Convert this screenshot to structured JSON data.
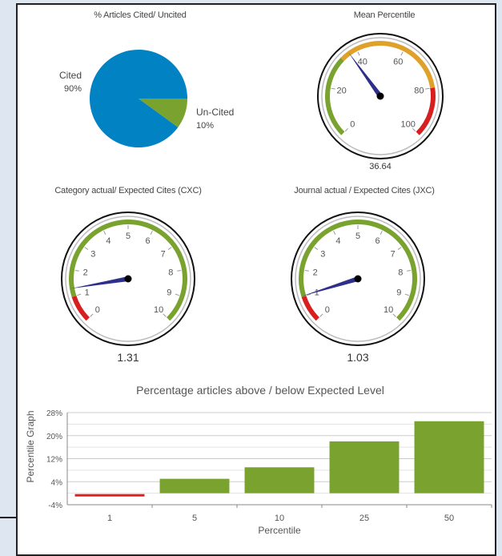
{
  "chart_data": [
    {
      "type": "pie",
      "title": "% Articles Cited/ Uncited",
      "slices": [
        {
          "label": "Cited",
          "pct_label": "90%",
          "value": 90,
          "color": "#0082c3"
        },
        {
          "label": "Un-Cited",
          "pct_label": "10%",
          "value": 10,
          "color": "#7aa22f"
        }
      ]
    },
    {
      "type": "gauge",
      "title": "Mean Percentile",
      "value": 36.64,
      "value_label": "36.64",
      "min": 0,
      "max": 100,
      "ticks": [
        "0",
        "20",
        "40",
        "60",
        "80",
        "100"
      ],
      "bands": [
        {
          "from": 0,
          "to": 33,
          "color": "#7aa22f"
        },
        {
          "from": 33,
          "to": 80,
          "color": "#e0a12b"
        },
        {
          "from": 80,
          "to": 100,
          "color": "#d81f1f"
        }
      ]
    },
    {
      "type": "gauge",
      "title": "Category actual/ Expected Cites (CXC)",
      "value": 1.31,
      "value_label": "1.31",
      "min": 0,
      "max": 10,
      "ticks": [
        "0",
        "1",
        "2",
        "3",
        "4",
        "5",
        "6",
        "7",
        "8",
        "9",
        "10"
      ],
      "bands": [
        {
          "from": 0,
          "to": 1,
          "color": "#d81f1f"
        },
        {
          "from": 1,
          "to": 10,
          "color": "#7aa22f"
        }
      ]
    },
    {
      "type": "gauge",
      "title": "Journal actual / Expected Cites (JXC)",
      "value": 1.03,
      "value_label": "1.03",
      "min": 0,
      "max": 10,
      "ticks": [
        "0",
        "1",
        "2",
        "3",
        "4",
        "5",
        "6",
        "7",
        "8",
        "9",
        "10"
      ],
      "bands": [
        {
          "from": 0,
          "to": 1,
          "color": "#d81f1f"
        },
        {
          "from": 1,
          "to": 10,
          "color": "#7aa22f"
        }
      ]
    },
    {
      "type": "bar",
      "title": "Percentage articles above / below Expected Level",
      "xlabel": "Percentile",
      "ylabel": "Percentile Graph",
      "categories": [
        "1",
        "5",
        "10",
        "25",
        "50"
      ],
      "values": [
        -1,
        5,
        9,
        18,
        25
      ],
      "colors": [
        "#e41b1b",
        "#7aa22f",
        "#7aa22f",
        "#7aa22f",
        "#7aa22f"
      ],
      "ylim": [
        -4,
        28
      ],
      "yticks": [
        -4,
        4,
        12,
        20,
        28
      ],
      "ytick_labels": [
        "-4%",
        "4%",
        "12%",
        "20%",
        "28%"
      ],
      "grid": true
    }
  ]
}
